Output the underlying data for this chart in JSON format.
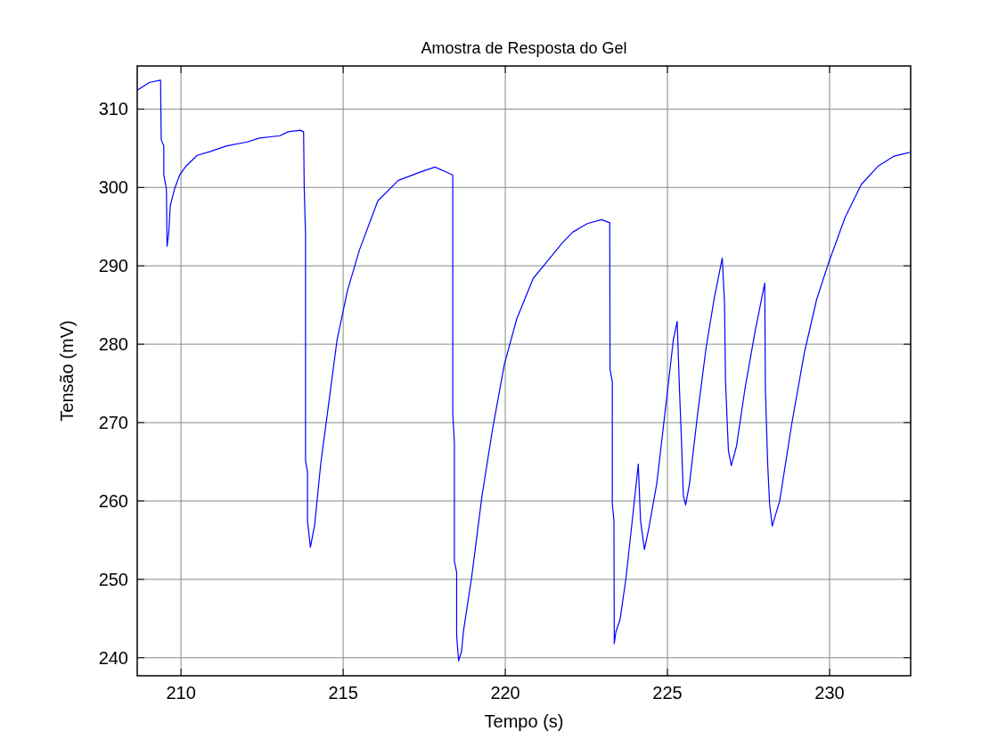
{
  "chart_data": {
    "type": "line",
    "title": "Amostra de Resposta do Gel",
    "xlabel": "Tempo (s)",
    "ylabel": "Tensão (mV)",
    "xlim": [
      208.65,
      232.5
    ],
    "ylim": [
      237.7,
      315.5
    ],
    "xticks": [
      210,
      215,
      220,
      225,
      230
    ],
    "yticks": [
      240,
      250,
      260,
      270,
      280,
      290,
      300,
      310
    ],
    "grid": true,
    "series": [
      {
        "color": "#0000ff",
        "x": [
          208.65,
          209.02,
          209.37,
          209.39,
          209.47,
          209.47,
          209.55,
          209.57,
          209.62,
          209.67,
          209.8,
          209.96,
          210.15,
          210.5,
          210.91,
          211.41,
          212.04,
          212.42,
          213.05,
          213.3,
          213.68,
          213.78,
          213.8,
          213.84,
          213.84,
          213.9,
          213.9,
          213.99,
          214.12,
          214.31,
          214.56,
          214.81,
          215.13,
          215.5,
          216.07,
          216.7,
          217.33,
          217.83,
          218.21,
          218.38,
          218.38,
          218.43,
          218.43,
          218.5,
          218.5,
          218.56,
          218.65,
          218.71,
          218.96,
          219.28,
          219.6,
          219.97,
          220.35,
          220.86,
          221.26,
          221.77,
          222.08,
          222.53,
          222.97,
          223.22,
          223.23,
          223.3,
          223.3,
          223.35,
          223.36,
          223.41,
          223.54,
          223.72,
          223.98,
          224.1,
          224.17,
          224.29,
          224.42,
          224.67,
          224.92,
          225.18,
          225.3,
          225.37,
          225.43,
          225.49,
          225.56,
          225.68,
          225.93,
          226.19,
          226.44,
          226.69,
          226.76,
          226.79,
          226.88,
          226.97,
          227.13,
          227.39,
          227.7,
          228.0,
          228.02,
          228.09,
          228.15,
          228.23,
          228.46,
          228.84,
          229.22,
          229.6,
          229.97,
          230.48,
          230.98,
          231.49,
          231.99,
          232.5
        ],
        "values": [
          312.4,
          313.4,
          313.7,
          306.1,
          305.3,
          301.6,
          299.8,
          292.5,
          294.1,
          297.7,
          299.8,
          301.6,
          302.7,
          304.1,
          304.6,
          305.3,
          305.8,
          306.3,
          306.6,
          307.1,
          307.3,
          307.1,
          299.8,
          294,
          265.1,
          263.7,
          257.5,
          254.1,
          256.9,
          264.8,
          272.6,
          280.5,
          286.8,
          292,
          298.3,
          300.9,
          301.9,
          302.6,
          301.9,
          301.6,
          271.1,
          267.4,
          252.3,
          250.9,
          242.8,
          239.6,
          240.8,
          243.4,
          250.2,
          260.6,
          269,
          277.4,
          283.2,
          288.4,
          290.4,
          293,
          294.3,
          295.4,
          295.9,
          295.5,
          276.8,
          275.2,
          259.6,
          257.5,
          241.8,
          243.3,
          244.9,
          250.1,
          260,
          264.7,
          257.5,
          253.8,
          256.4,
          262.2,
          271.1,
          280.5,
          282.9,
          274.3,
          268,
          260.7,
          259.5,
          262.2,
          271.1,
          279.5,
          285.8,
          291,
          285.2,
          275.3,
          266.4,
          264.5,
          267,
          274.3,
          281.6,
          287.8,
          274.3,
          264.8,
          259.6,
          256.8,
          260,
          270,
          278.9,
          285.7,
          290.4,
          296.2,
          300.4,
          302.7,
          304,
          304.5
        ]
      }
    ]
  }
}
